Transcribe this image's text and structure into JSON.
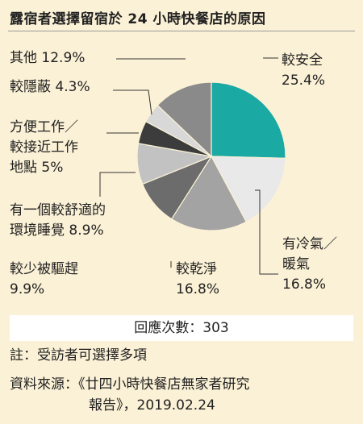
{
  "title": "露宿者選擇留宿於 24 小時快餐店的原因",
  "chart_data": {
    "type": "pie",
    "slices": [
      {
        "label_lines": [
          "較安全"
        ],
        "pct_text": "25.4%",
        "value": 25.4,
        "color": "#1ba9a4"
      },
      {
        "label_lines": [
          "有冷氣／",
          "暖氣"
        ],
        "pct_text": "16.8%",
        "value": 16.8,
        "color": "#e9e9e9"
      },
      {
        "label_lines": [
          "較乾淨"
        ],
        "pct_text": "16.8%",
        "value": 16.8,
        "color": "#a3a3a3"
      },
      {
        "label_lines": [
          "較少被驅趕"
        ],
        "pct_text": "9.9%",
        "value": 9.9,
        "color": "#6c6c6c"
      },
      {
        "label_lines": [
          "有一個較舒適的",
          "環境睡覺 8.9%"
        ],
        "pct_text": "",
        "value": 8.9,
        "color": "#c2c2c2"
      },
      {
        "label_lines": [
          "方便工作／",
          "較接近工作",
          "地點 5%"
        ],
        "pct_text": "",
        "value": 5.0,
        "color": "#3c3c3c"
      },
      {
        "label_lines": [
          "較隱蔽 4.3%"
        ],
        "pct_text": "",
        "value": 4.3,
        "color": "#d8d8d8"
      },
      {
        "label_lines": [
          "其他 12.9%"
        ],
        "pct_text": "",
        "value": 12.9,
        "color": "#8a8a8a"
      }
    ]
  },
  "response_count": "回應次數：303",
  "note": "註：受訪者可選擇多項",
  "source_line1": "資料來源：《廿四小時快餐店無家者研究",
  "source_line2": "報告》，2019.02.24"
}
